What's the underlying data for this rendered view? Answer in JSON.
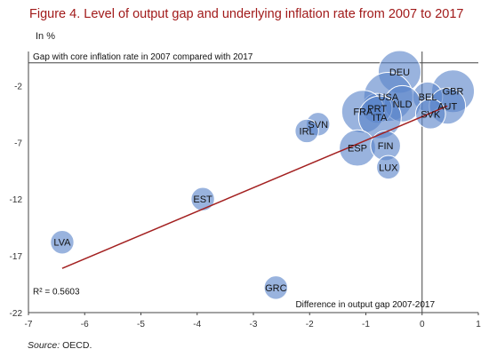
{
  "title": "Figure 4. Level of output gap and underlying inflation rate from 2007 to 2017",
  "unit_label": "In %",
  "source": {
    "label": "Source:",
    "text": "OECD."
  },
  "chart_data": {
    "type": "scatter",
    "title": "Figure 4. Level of output gap and underlying inflation rate from 2007 to 2017",
    "xlabel": "Difference in output gap 2007-2017",
    "ylabel": "Gap with core inflation rate in 2007 compared with 2017",
    "xlim": [
      -7,
      1
    ],
    "ylim": [
      -22,
      1
    ],
    "xticks": [
      -7,
      -6,
      -5,
      -4,
      -3,
      -2,
      -1,
      0,
      1
    ],
    "yticks": [
      -2,
      -7,
      -12,
      -17,
      -22
    ],
    "grid": false,
    "bubble_color": "#5b84c9",
    "trendline_color": "#a32020",
    "r_squared_label": "R² = 0.5603",
    "points": [
      {
        "label": "DEU",
        "x": -0.4,
        "y": -0.8,
        "size": 5
      },
      {
        "label": "GBR",
        "x": 0.55,
        "y": -2.5,
        "size": 5
      },
      {
        "label": "USA",
        "x": -0.6,
        "y": -3.0,
        "size": 6
      },
      {
        "label": "BEL",
        "x": 0.1,
        "y": -3.0,
        "size": 3
      },
      {
        "label": "NLD",
        "x": -0.35,
        "y": -3.6,
        "size": 4
      },
      {
        "label": "AUT",
        "x": 0.45,
        "y": -3.8,
        "size": 4
      },
      {
        "label": "PRT",
        "x": -0.8,
        "y": -4.0,
        "size": 3
      },
      {
        "label": "FRA",
        "x": -1.05,
        "y": -4.3,
        "size": 5
      },
      {
        "label": "SVK",
        "x": 0.15,
        "y": -4.5,
        "size": 3
      },
      {
        "label": "ITA",
        "x": -0.75,
        "y": -4.8,
        "size": 5
      },
      {
        "label": "SVN",
        "x": -1.85,
        "y": -5.4,
        "size": 2
      },
      {
        "label": "IRL",
        "x": -2.05,
        "y": -6.0,
        "size": 2
      },
      {
        "label": "ESP",
        "x": -1.15,
        "y": -7.5,
        "size": 4
      },
      {
        "label": "FIN",
        "x": -0.65,
        "y": -7.3,
        "size": 3
      },
      {
        "label": "LUX",
        "x": -0.6,
        "y": -9.2,
        "size": 2
      },
      {
        "label": "EST",
        "x": -3.9,
        "y": -12.0,
        "size": 2
      },
      {
        "label": "LVA",
        "x": -6.4,
        "y": -15.8,
        "size": 2
      },
      {
        "label": "GRC",
        "x": -2.6,
        "y": -19.8,
        "size": 2
      }
    ],
    "trendline": {
      "x": [
        -6.4,
        0.45
      ],
      "y": [
        -18.1,
        -3.8
      ]
    }
  }
}
